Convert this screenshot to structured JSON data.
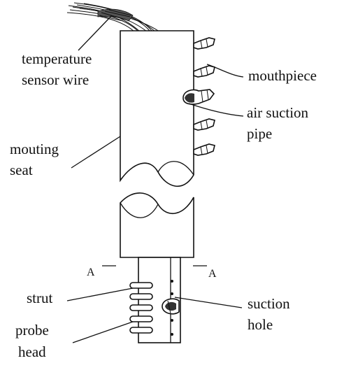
{
  "labels": {
    "temperature_sensor_wire": [
      "temperature",
      "sensor wire"
    ],
    "mouthpiece": "mouthpiece",
    "air_suction_pipe": [
      "air suction",
      "pipe"
    ],
    "mouting_seat": [
      "mouting",
      "seat"
    ],
    "strut": "strut",
    "probe_head": [
      "probe",
      "head"
    ],
    "suction_hole": [
      "suction",
      "hole"
    ],
    "section_left": "A",
    "section_right": "A"
  }
}
